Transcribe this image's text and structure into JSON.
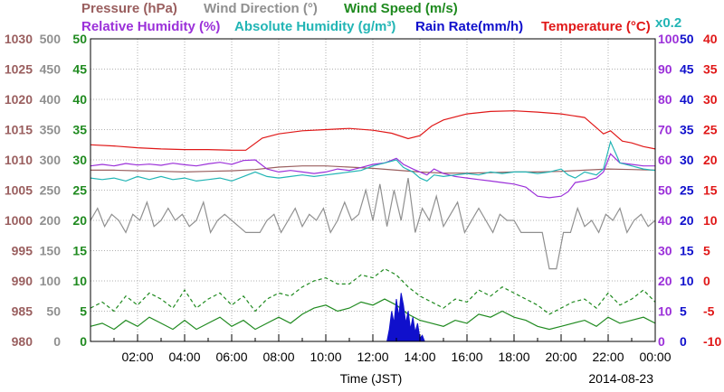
{
  "header": {
    "row1": [
      {
        "label": "Pressure (hPa)",
        "color": "#9a5f5f"
      },
      {
        "label": "Wind Direction (°)",
        "color": "#909090"
      },
      {
        "label": "Wind Speed (m/s)",
        "color": "#1f8a1f"
      }
    ],
    "row2": [
      {
        "label": "Relative Humidity (%)",
        "color": "#9b30d9"
      },
      {
        "label": "Absolute Humidity (g/m³)",
        "color": "#22b5b5"
      },
      {
        "label": "Rain Rate(mm/h)",
        "color": "#1010cc"
      },
      {
        "label": "Temperature (°C)",
        "color": "#e01818"
      }
    ],
    "scale_note": "x0.2"
  },
  "chart_data": {
    "type": "line",
    "xlabel": "Time (JST)",
    "date_label": "2014-08-23",
    "x_ticks": [
      "02:00",
      "04:00",
      "06:00",
      "08:00",
      "10:00",
      "12:00",
      "14:00",
      "16:00",
      "18:00",
      "20:00",
      "22:00",
      "00:00"
    ],
    "xlim": [
      0,
      24
    ],
    "axes": [
      {
        "name": "Pressure (hPa)",
        "side": "left",
        "color": "#9a5f5f",
        "ticks": [
          "980",
          "985",
          "990",
          "995",
          "1000",
          "1005",
          "1010",
          "1015",
          "1020",
          "1025",
          "1030"
        ]
      },
      {
        "name": "Wind Direction (°)",
        "side": "left",
        "color": "#909090",
        "ticks": [
          "0",
          "50",
          "100",
          "150",
          "200",
          "250",
          "300",
          "350",
          "400",
          "450",
          "500"
        ]
      },
      {
        "name": "Wind Speed (m/s)",
        "side": "left",
        "color": "#1f8a1f",
        "ticks": [
          "0",
          "5",
          "10",
          "15",
          "20",
          "25",
          "30",
          "35",
          "40",
          "45",
          "50"
        ]
      },
      {
        "name": "Relative Humidity (%)",
        "side": "right",
        "color": "#9b30d9",
        "ticks": [
          "0",
          "10",
          "20",
          "30",
          "40",
          "50",
          "60",
          "70",
          "80",
          "90",
          "100"
        ]
      },
      {
        "name": "Rain Rate(mm/h)",
        "side": "right",
        "color": "#1010cc",
        "ticks": [
          "0",
          "5",
          "10",
          "15",
          "20",
          "25",
          "30",
          "35",
          "40",
          "45",
          "50"
        ]
      },
      {
        "name": "Temperature (°C)",
        "side": "right",
        "color": "#e01818",
        "ticks": [
          "-10",
          "-5",
          "0",
          "5",
          "10",
          "15",
          "20",
          "25",
          "30",
          "35",
          "40"
        ]
      }
    ],
    "series": [
      {
        "name": "Temperature (°C)",
        "color": "#e01818",
        "scale": "temperature",
        "x": [
          0,
          1,
          2,
          3,
          4,
          5,
          6,
          6.6,
          7.3,
          8,
          9,
          10,
          11,
          12,
          12.8,
          13.5,
          14,
          14.5,
          15,
          16,
          17,
          18,
          19,
          20,
          21,
          21.8,
          22.1,
          22.6,
          23,
          23.5,
          24
        ],
        "y": [
          22.5,
          22.3,
          22.0,
          21.8,
          21.7,
          21.7,
          21.6,
          21.6,
          23.6,
          24.3,
          24.8,
          25.0,
          25.2,
          24.9,
          24.4,
          23.5,
          24.0,
          25.6,
          26.6,
          27.6,
          28.0,
          28.1,
          27.9,
          27.6,
          27.0,
          24.3,
          24.8,
          23.1,
          22.8,
          22.2,
          21.8
        ]
      },
      {
        "name": "Pressure (hPa)",
        "color": "#9a5f5f",
        "scale": "pressure",
        "x": [
          0,
          1,
          2,
          3,
          4,
          5,
          6,
          7,
          8,
          9,
          10,
          11,
          12,
          13,
          14,
          15,
          16,
          17,
          18,
          19,
          20,
          21,
          22,
          23,
          24
        ],
        "y": [
          1008.3,
          1008.3,
          1008.2,
          1008.1,
          1008.0,
          1008.1,
          1008.2,
          1008.4,
          1008.8,
          1009.0,
          1009.0,
          1008.8,
          1008.6,
          1008.3,
          1008.0,
          1007.8,
          1007.8,
          1007.9,
          1008.0,
          1008.0,
          1008.1,
          1008.3,
          1008.5,
          1008.4,
          1008.3
        ]
      },
      {
        "name": "Relative Humidity (%)",
        "color": "#9b30d9",
        "scale": "humidity",
        "x": [
          0,
          0.5,
          1,
          1.5,
          2,
          2.5,
          3,
          3.5,
          4,
          4.5,
          5,
          5.5,
          6,
          6.5,
          7,
          7.5,
          8,
          8.5,
          9,
          9.5,
          10,
          10.5,
          11,
          11.5,
          12,
          12.5,
          13,
          13.3,
          13.7,
          14,
          14.3,
          14.6,
          15,
          15.5,
          16,
          16.5,
          17,
          17.5,
          18,
          18.5,
          19,
          19.5,
          20,
          20.3,
          20.6,
          21,
          21.5,
          21.8,
          22.1,
          22.5,
          23,
          23.5,
          24
        ],
        "y": [
          58.0,
          58.5,
          58.0,
          58.8,
          58.3,
          58.6,
          58.2,
          58.9,
          58.4,
          58.0,
          58.7,
          59.2,
          58.5,
          59.8,
          60.0,
          57.0,
          56.0,
          56.5,
          56.0,
          55.5,
          56.0,
          57.0,
          56.5,
          57.5,
          58.5,
          59.0,
          60.5,
          58.5,
          57.0,
          56.0,
          55.0,
          57.0,
          55.5,
          54.5,
          54.0,
          53.5,
          53.0,
          52.5,
          52.0,
          51.0,
          48.0,
          47.5,
          48.0,
          49.5,
          52.5,
          53.0,
          54.0,
          56.0,
          62.0,
          59.0,
          58.5,
          58.0,
          58.0
        ]
      },
      {
        "name": "Absolute Humidity (g/m³)",
        "color": "#22b5b5",
        "scale": "humidity",
        "x": [
          0,
          0.5,
          1,
          1.5,
          2,
          2.5,
          3,
          3.5,
          4,
          4.5,
          5,
          5.5,
          6,
          6.5,
          7,
          7.5,
          8,
          8.5,
          9,
          9.5,
          10,
          10.5,
          11,
          11.5,
          12,
          12.5,
          13,
          13.3,
          13.7,
          14,
          14.3,
          14.6,
          15,
          15.5,
          16,
          16.5,
          17,
          17.5,
          18,
          18.5,
          19,
          19.5,
          20,
          20.3,
          20.6,
          21,
          21.5,
          21.8,
          22.1,
          22.5,
          23,
          23.5,
          24
        ],
        "y": [
          54.0,
          53.5,
          54.0,
          53.0,
          54.5,
          53.5,
          54.5,
          53.5,
          54.0,
          53.0,
          53.5,
          54.0,
          53.0,
          54.5,
          56.0,
          54.5,
          54.0,
          54.5,
          55.0,
          54.5,
          55.0,
          55.5,
          56.0,
          56.5,
          58.0,
          59.0,
          60.0,
          57.5,
          56.0,
          54.0,
          53.0,
          55.0,
          54.5,
          55.0,
          55.5,
          55.0,
          56.0,
          55.5,
          56.0,
          56.0,
          55.5,
          56.0,
          57.0,
          55.0,
          54.0,
          56.0,
          55.0,
          57.0,
          66.0,
          59.0,
          58.0,
          57.0,
          56.5
        ]
      },
      {
        "name": "Wind Direction (°)",
        "color": "#909090",
        "scale": "direction",
        "x": [
          0,
          0.3,
          0.6,
          0.9,
          1.2,
          1.5,
          1.8,
          2.1,
          2.4,
          2.7,
          3,
          3.3,
          3.6,
          3.9,
          4.2,
          4.5,
          4.8,
          5.1,
          5.4,
          5.7,
          6,
          6.3,
          6.6,
          6.9,
          7.2,
          7.5,
          7.8,
          8.1,
          8.4,
          8.7,
          9,
          9.3,
          9.6,
          9.9,
          10.2,
          10.5,
          10.8,
          11.1,
          11.4,
          11.7,
          12,
          12.3,
          12.6,
          12.9,
          13.2,
          13.5,
          13.8,
          14.1,
          14.4,
          14.7,
          15,
          15.3,
          15.6,
          15.9,
          16.2,
          16.5,
          16.8,
          17.1,
          17.4,
          17.7,
          18,
          18.3,
          18.6,
          18.9,
          19.2,
          19.5,
          19.8,
          20.1,
          20.4,
          20.7,
          21,
          21.3,
          21.6,
          21.9,
          22.2,
          22.5,
          22.8,
          23.1,
          23.4,
          23.7,
          24
        ],
        "y": [
          200,
          220,
          190,
          210,
          200,
          180,
          210,
          200,
          230,
          190,
          200,
          220,
          200,
          210,
          190,
          200,
          230,
          180,
          200,
          210,
          200,
          190,
          180,
          180,
          180,
          200,
          210,
          180,
          200,
          220,
          190,
          210,
          200,
          220,
          180,
          200,
          230,
          200,
          210,
          250,
          200,
          260,
          190,
          250,
          200,
          270,
          180,
          220,
          200,
          240,
          190,
          210,
          230,
          180,
          200,
          220,
          200,
          180,
          210,
          200,
          200,
          180,
          180,
          180,
          180,
          120,
          120,
          180,
          180,
          220,
          190,
          200,
          180,
          210,
          200,
          220,
          180,
          200,
          210,
          190,
          200
        ]
      },
      {
        "name": "Wind Speed (m/s)",
        "color": "#1f8a1f",
        "scale": "speed",
        "x": [
          0,
          0.5,
          1,
          1.5,
          2,
          2.5,
          3,
          3.5,
          4,
          4.5,
          5,
          5.5,
          6,
          6.5,
          7,
          7.5,
          8,
          8.5,
          9,
          9.5,
          10,
          10.5,
          11,
          11.5,
          12,
          12.5,
          13,
          13.5,
          14,
          14.5,
          15,
          15.5,
          16,
          16.5,
          17,
          17.5,
          18,
          18.5,
          19,
          19.5,
          20,
          20.5,
          21,
          21.5,
          22,
          22.5,
          23,
          23.5,
          24
        ],
        "y": [
          2.5,
          3.0,
          2.0,
          3.5,
          2.5,
          4.0,
          3.0,
          2.0,
          3.5,
          2.0,
          3.0,
          4.0,
          2.5,
          3.5,
          2.0,
          3.0,
          4.0,
          3.0,
          4.5,
          5.5,
          6.0,
          5.0,
          5.5,
          6.5,
          6.0,
          7.0,
          6.0,
          4.5,
          3.5,
          3.0,
          2.5,
          3.5,
          3.0,
          4.5,
          4.0,
          5.0,
          4.0,
          3.5,
          2.5,
          2.0,
          2.5,
          3.0,
          3.5,
          2.5,
          4.0,
          3.0,
          3.5,
          4.0,
          3.0
        ]
      },
      {
        "name": "Wind Speed max (m/s)",
        "color": "#1f8a1f",
        "dashed": true,
        "scale": "speed",
        "x": [
          0,
          0.5,
          1,
          1.5,
          2,
          2.5,
          3,
          3.5,
          4,
          4.5,
          5,
          5.5,
          6,
          6.5,
          7,
          7.5,
          8,
          8.5,
          9,
          9.5,
          10,
          10.5,
          11,
          11.5,
          12,
          12.5,
          13,
          13.5,
          14,
          14.5,
          15,
          15.5,
          16,
          16.5,
          17,
          17.5,
          18,
          18.5,
          19,
          19.5,
          20,
          20.5,
          21,
          21.5,
          22,
          22.5,
          23,
          23.5,
          24
        ],
        "y": [
          5.5,
          6.5,
          5.0,
          7.5,
          6.0,
          8.0,
          7.0,
          5.5,
          8.5,
          5.5,
          7.0,
          8.0,
          6.0,
          7.5,
          5.0,
          7.0,
          8.0,
          7.5,
          9.0,
          10.0,
          10.5,
          9.5,
          9.5,
          11.0,
          10.5,
          12.0,
          11.0,
          9.0,
          7.5,
          6.5,
          5.5,
          7.0,
          6.5,
          8.5,
          7.5,
          9.0,
          8.0,
          7.0,
          6.0,
          4.5,
          5.5,
          6.5,
          7.0,
          5.5,
          8.0,
          6.0,
          7.0,
          8.5,
          6.5
        ]
      },
      {
        "name": "Rain Rate(mm/h)",
        "color": "#1010cc",
        "fill": true,
        "scale": "rain",
        "x": [
          12.6,
          12.7,
          12.8,
          12.9,
          13.0,
          13.1,
          13.2,
          13.3,
          13.4,
          13.5,
          13.6,
          13.7,
          13.8,
          13.9,
          14.0,
          14.1,
          14.2
        ],
        "y": [
          0,
          2.0,
          5.0,
          3.0,
          7.0,
          4.0,
          8.0,
          6.0,
          3.0,
          5.0,
          2.0,
          4.0,
          1.5,
          3.0,
          0.5,
          1.0,
          0
        ]
      }
    ],
    "ylims": {
      "temperature": [
        -10,
        40
      ],
      "pressure": [
        980,
        1030
      ],
      "humidity": [
        0,
        100
      ],
      "direction": [
        0,
        500
      ],
      "speed": [
        0,
        50
      ],
      "rain": [
        0,
        50
      ]
    },
    "grid": true
  }
}
